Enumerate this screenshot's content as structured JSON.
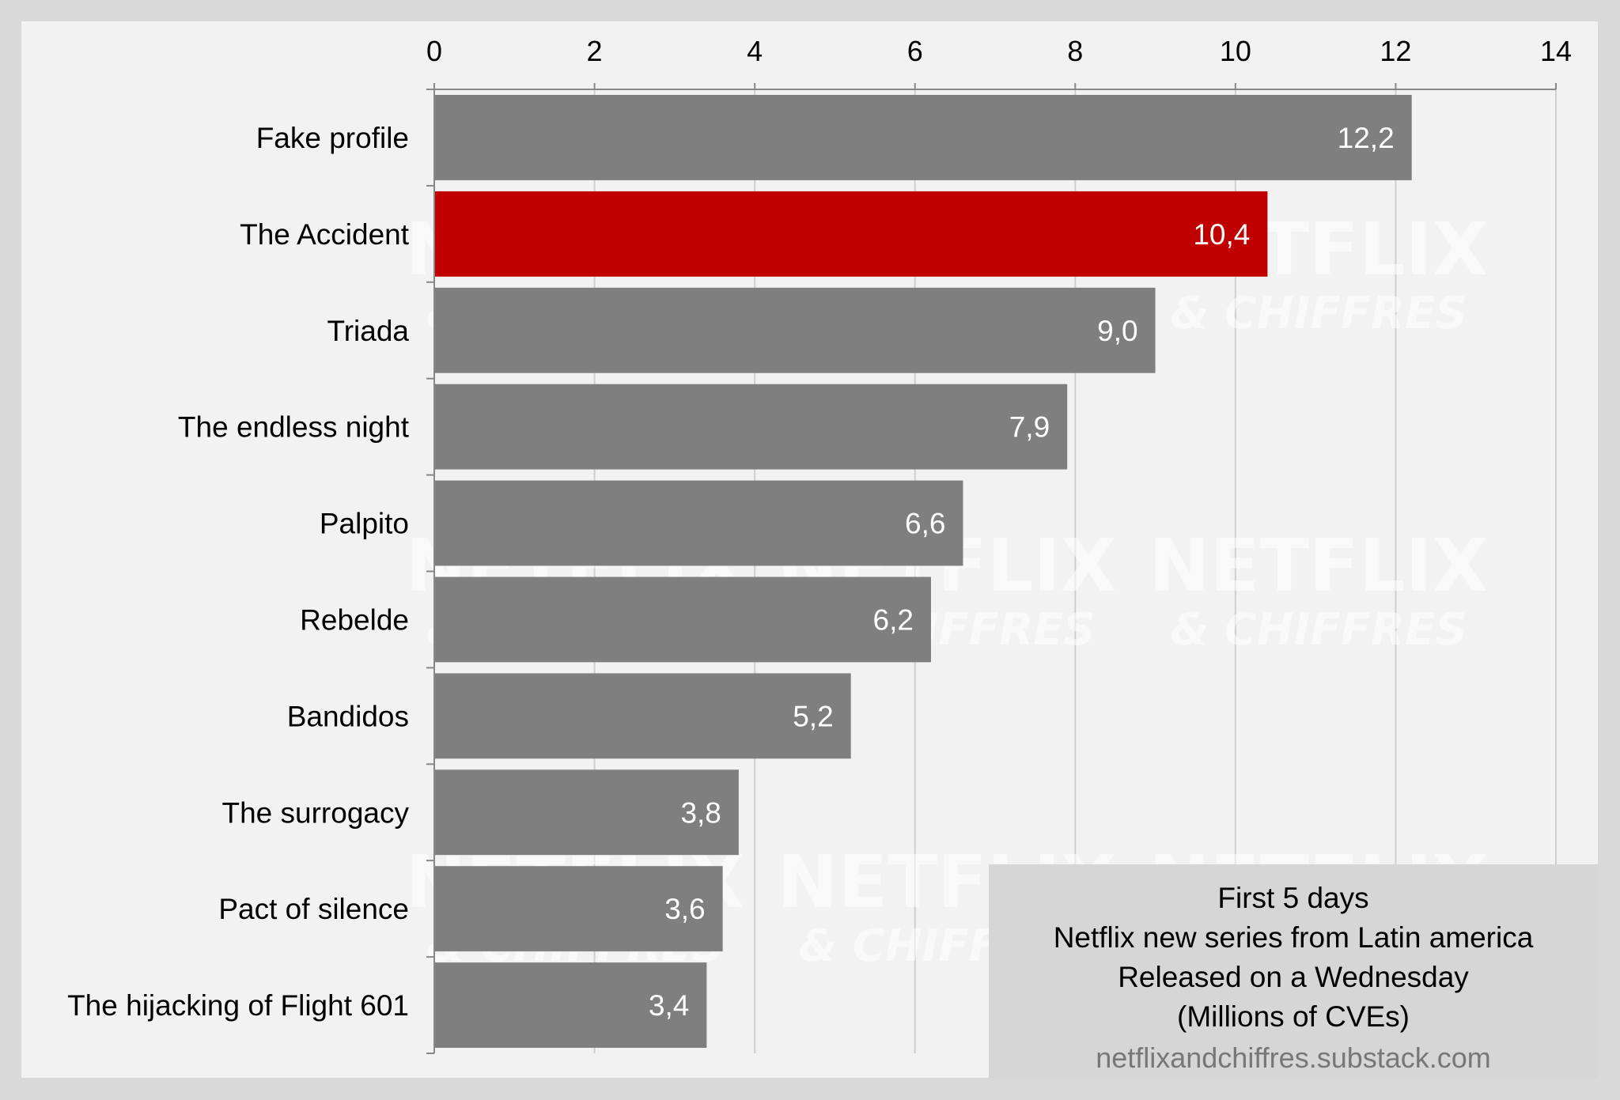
{
  "chart_data": {
    "type": "bar",
    "orientation": "horizontal",
    "categories": [
      "Fake profile",
      "The Accident",
      "Triada",
      "The endless night",
      "Palpito",
      "Rebelde",
      "Bandidos",
      "The surrogacy",
      "Pact of silence",
      "The hijacking of Flight 601"
    ],
    "values": [
      12.2,
      10.4,
      9.0,
      7.9,
      6.6,
      6.2,
      5.2,
      3.8,
      3.6,
      3.4
    ],
    "value_labels": [
      "12,2",
      "10,4",
      "9,0",
      "7,9",
      "6,6",
      "6,2",
      "5,2",
      "3,8",
      "3,6",
      "3,4"
    ],
    "highlight_index": 1,
    "xlim": [
      0,
      14
    ],
    "xticks": [
      0,
      2,
      4,
      6,
      8,
      10,
      12,
      14
    ],
    "x_axis_position": "top",
    "grid": true,
    "colors": {
      "bar": "#7f7f7f",
      "highlight": "#c00000",
      "grid": "#cfcfcf",
      "background": "#f2f2f2"
    }
  },
  "legend_box": {
    "lines": [
      "First 5 days",
      "Netflix new series from Latin america",
      "Released on a Wednesday",
      "(Millions of CVEs)"
    ],
    "url": "netflixandchiffres.substack.com"
  },
  "watermark": {
    "line1": "NETFLIX",
    "line2": "& CHIFFRES"
  }
}
